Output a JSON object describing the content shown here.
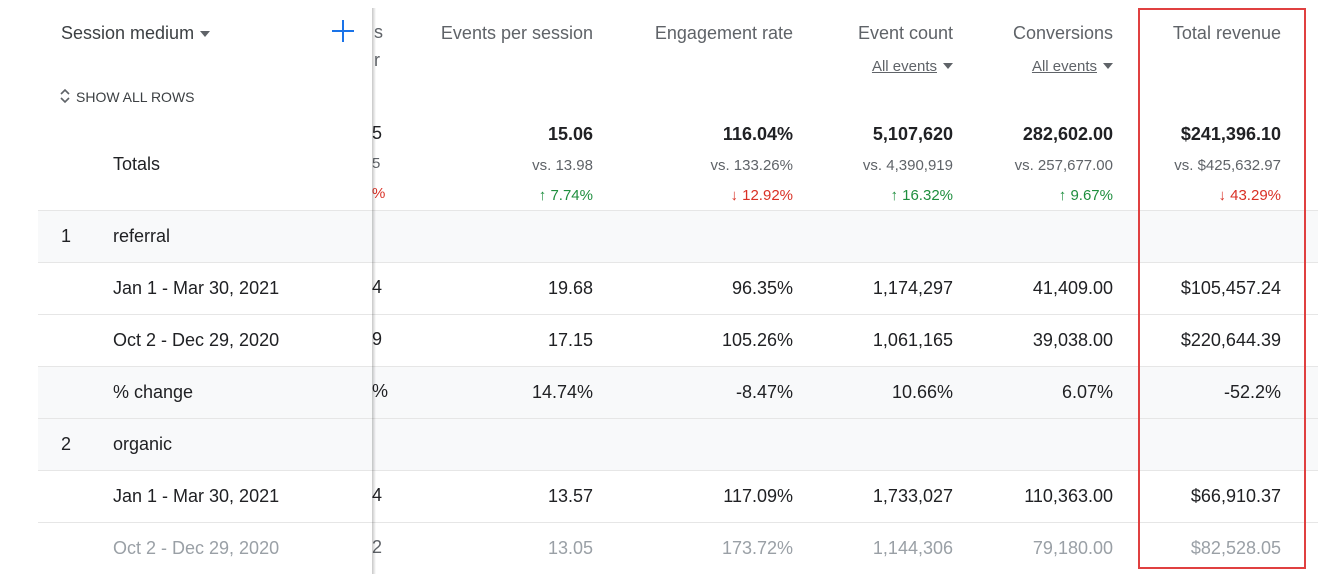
{
  "dimension": {
    "label": "Session medium",
    "show_all_rows": "SHOW ALL ROWS"
  },
  "columns": [
    {
      "label": "Events per session",
      "sub": ""
    },
    {
      "label": "Engagement rate",
      "sub": ""
    },
    {
      "label": "Event count",
      "sub": "All events"
    },
    {
      "label": "Conversions",
      "sub": "All events"
    },
    {
      "label": "Total revenue",
      "sub": ""
    }
  ],
  "hidden_column_fragments": {
    "header": [
      "s",
      "r"
    ],
    "totals": [
      "5",
      "5",
      "%"
    ],
    "rows": [
      "4",
      "9",
      "%",
      "4",
      "2"
    ]
  },
  "totals": {
    "label": "Totals",
    "values": [
      "15.06",
      "116.04%",
      "5,107,620",
      "282,602.00",
      "$241,396.10"
    ],
    "vs": [
      "vs. 13.98",
      "vs. 133.26%",
      "vs. 4,390,919",
      "vs. 257,677.00",
      "vs. $425,632.97"
    ],
    "change": [
      {
        "text": "7.74%",
        "dir": "up"
      },
      {
        "text": "12.92%",
        "dir": "down"
      },
      {
        "text": "16.32%",
        "dir": "up"
      },
      {
        "text": "9.67%",
        "dir": "up"
      },
      {
        "text": "43.29%",
        "dir": "down"
      }
    ]
  },
  "groups": [
    {
      "index": "1",
      "name": "referral",
      "rows": [
        {
          "label": "Jan 1 - Mar 30, 2021",
          "values": [
            "19.68",
            "96.35%",
            "1,174,297",
            "41,409.00",
            "$105,457.24"
          ]
        },
        {
          "label": "Oct 2 - Dec 29, 2020",
          "values": [
            "17.15",
            "105.26%",
            "1,061,165",
            "39,038.00",
            "$220,644.39"
          ]
        },
        {
          "label": "% change",
          "values": [
            "14.74%",
            "-8.47%",
            "10.66%",
            "6.07%",
            "-52.2%"
          ]
        }
      ]
    },
    {
      "index": "2",
      "name": "organic",
      "rows": [
        {
          "label": "Jan 1 - Mar 30, 2021",
          "values": [
            "13.57",
            "117.09%",
            "1,733,027",
            "110,363.00",
            "$66,910.37"
          ]
        },
        {
          "label": "Oct 2 - Dec 29, 2020",
          "values": [
            "13.05",
            "173.72%",
            "1,144,306",
            "79,180.00",
            "$82,528.05"
          ]
        }
      ]
    }
  ],
  "colors": {
    "accent": "#1a73e8",
    "up": "#1e8e3e",
    "down": "#d93025",
    "highlight": "#e04040"
  },
  "icons": {
    "add": "plus-icon",
    "dropdown": "caret-down-icon",
    "expand": "unfold-icon",
    "change_up": "arrow-up-icon",
    "change_down": "arrow-down-icon"
  }
}
